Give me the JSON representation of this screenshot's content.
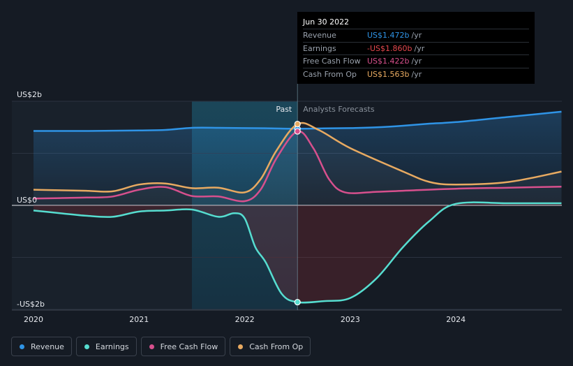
{
  "chart_data": {
    "type": "line",
    "y_unit": "USD",
    "y_tick_labels": [
      "US$2b",
      "US$0",
      "-US$2b"
    ],
    "y_ticks": [
      2,
      0,
      -2
    ],
    "ylim": [
      -2.0,
      2.0
    ],
    "x_tick_labels": [
      "2020",
      "2021",
      "2022",
      "2023",
      "2024"
    ],
    "x_ticks": [
      2020,
      2021,
      2022,
      2023,
      2024
    ],
    "xlim": [
      2019.8,
      2025.0
    ],
    "divider_x": 2022.5,
    "past_start": 2021.5,
    "past_label": "Past",
    "forecast_label": "Analysts Forecasts",
    "grid": true,
    "series": [
      {
        "name": "Revenue",
        "color": "#2f94e6",
        "points": [
          [
            2020.0,
            1.43
          ],
          [
            2020.5,
            1.43
          ],
          [
            2020.75,
            1.435
          ],
          [
            2021.0,
            1.44
          ],
          [
            2021.25,
            1.45
          ],
          [
            2021.5,
            1.49
          ],
          [
            2021.75,
            1.49
          ],
          [
            2022.0,
            1.485
          ],
          [
            2022.25,
            1.48
          ],
          [
            2022.5,
            1.472
          ],
          [
            2022.75,
            1.48
          ],
          [
            2023.0,
            1.485
          ],
          [
            2023.25,
            1.5
          ],
          [
            2023.5,
            1.53
          ],
          [
            2023.75,
            1.57
          ],
          [
            2024.0,
            1.6
          ],
          [
            2024.5,
            1.7
          ],
          [
            2025.0,
            1.8
          ]
        ]
      },
      {
        "name": "Earnings",
        "color": "#56ddd0",
        "points": [
          [
            2020.0,
            -0.1
          ],
          [
            2020.25,
            -0.15
          ],
          [
            2020.5,
            -0.2
          ],
          [
            2020.75,
            -0.22
          ],
          [
            2021.0,
            -0.12
          ],
          [
            2021.25,
            -0.1
          ],
          [
            2021.5,
            -0.08
          ],
          [
            2021.75,
            -0.22
          ],
          [
            2021.9,
            -0.15
          ],
          [
            2022.0,
            -0.25
          ],
          [
            2022.1,
            -0.8
          ],
          [
            2022.2,
            -1.1
          ],
          [
            2022.35,
            -1.7
          ],
          [
            2022.5,
            -1.86
          ],
          [
            2022.75,
            -1.84
          ],
          [
            2023.0,
            -1.78
          ],
          [
            2023.25,
            -1.4
          ],
          [
            2023.5,
            -0.8
          ],
          [
            2023.75,
            -0.3
          ],
          [
            2024.0,
            0.03
          ],
          [
            2024.5,
            0.04
          ],
          [
            2025.0,
            0.04
          ]
        ]
      },
      {
        "name": "Free Cash Flow",
        "color": "#d7508d",
        "points": [
          [
            2020.0,
            0.13
          ],
          [
            2020.25,
            0.14
          ],
          [
            2020.5,
            0.15
          ],
          [
            2020.75,
            0.17
          ],
          [
            2021.0,
            0.3
          ],
          [
            2021.25,
            0.35
          ],
          [
            2021.5,
            0.18
          ],
          [
            2021.75,
            0.17
          ],
          [
            2022.0,
            0.08
          ],
          [
            2022.15,
            0.3
          ],
          [
            2022.3,
            0.9
          ],
          [
            2022.5,
            1.422
          ],
          [
            2022.65,
            1.1
          ],
          [
            2022.8,
            0.5
          ],
          [
            2022.95,
            0.25
          ],
          [
            2023.25,
            0.26
          ],
          [
            2023.5,
            0.28
          ],
          [
            2024.0,
            0.32
          ],
          [
            2024.5,
            0.34
          ],
          [
            2025.0,
            0.36
          ]
        ]
      },
      {
        "name": "Cash From Op",
        "color": "#e8aa61",
        "points": [
          [
            2020.0,
            0.3
          ],
          [
            2020.25,
            0.29
          ],
          [
            2020.5,
            0.28
          ],
          [
            2020.75,
            0.27
          ],
          [
            2021.0,
            0.4
          ],
          [
            2021.25,
            0.42
          ],
          [
            2021.5,
            0.33
          ],
          [
            2021.75,
            0.34
          ],
          [
            2022.0,
            0.25
          ],
          [
            2022.15,
            0.5
          ],
          [
            2022.3,
            1.05
          ],
          [
            2022.5,
            1.563
          ],
          [
            2022.7,
            1.45
          ],
          [
            2023.0,
            1.1
          ],
          [
            2023.5,
            0.65
          ],
          [
            2023.75,
            0.45
          ],
          [
            2024.0,
            0.4
          ],
          [
            2024.5,
            0.45
          ],
          [
            2025.0,
            0.65
          ]
        ]
      }
    ]
  },
  "tooltip": {
    "date": "Jun 30 2022",
    "rows": [
      {
        "name": "Revenue",
        "value": "US$1.472b",
        "unit": "/yr",
        "color": "#2f94e6"
      },
      {
        "name": "Earnings",
        "value": "-US$1.860b",
        "unit": "/yr",
        "color": "#e5484d"
      },
      {
        "name": "Free Cash Flow",
        "value": "US$1.422b",
        "unit": "/yr",
        "color": "#d7508d"
      },
      {
        "name": "Cash From Op",
        "value": "US$1.563b",
        "unit": "/yr",
        "color": "#e8aa61"
      }
    ]
  },
  "legend": [
    {
      "label": "Revenue",
      "color": "#2f94e6"
    },
    {
      "label": "Earnings",
      "color": "#56ddd0"
    },
    {
      "label": "Free Cash Flow",
      "color": "#d7508d"
    },
    {
      "label": "Cash From Op",
      "color": "#e8aa61"
    }
  ]
}
